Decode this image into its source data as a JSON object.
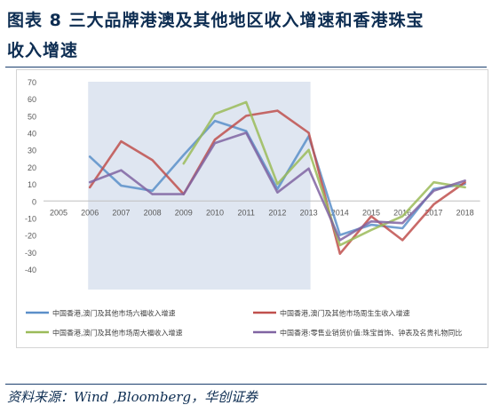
{
  "figure": {
    "title_line1": "图表 8   三大品牌港澳及其他地区收入增速和香港珠宝",
    "title_line2": "收入增速",
    "source": "资料来源：Wind ,Bloomberg，华创证券"
  },
  "chart_data": {
    "type": "line",
    "x": [
      "2005",
      "2006",
      "2007",
      "2008",
      "2009",
      "2010",
      "2011",
      "2012",
      "2013",
      "2014",
      "2015",
      "2016",
      "2017",
      "2018"
    ],
    "ylim": [
      -40,
      70
    ],
    "yticks": [
      70,
      60,
      50,
      40,
      30,
      20,
      10,
      0,
      -10,
      -20,
      -30,
      -40
    ],
    "grid": false,
    "legend_position": "bottom",
    "highlight_band": {
      "x_start": "2006",
      "x_end": "2013",
      "color": "#dfe6f1"
    },
    "series": [
      {
        "name": "中国香港,澳门及其他市场六福收入增速",
        "color": "#5b8fc9",
        "values": [
          null,
          26,
          9,
          6,
          27,
          47,
          41,
          7,
          38,
          -20,
          -14,
          -16,
          7,
          10
        ]
      },
      {
        "name": "中国香港,澳门及其他市场周生生收入增速",
        "color": "#c0504d",
        "values": [
          null,
          8,
          35,
          24,
          4,
          36,
          50,
          53,
          40,
          -31,
          -9,
          -23,
          -2,
          11
        ]
      },
      {
        "name": "中国香港,澳门及其他市场周大福收入增速",
        "color": "#9bbb59",
        "values": [
          null,
          null,
          null,
          null,
          22,
          51,
          58,
          10,
          30,
          -26,
          -17,
          -9,
          11,
          8
        ]
      },
      {
        "name": "中国香港:零售业销货价值:珠宝首饰、钟表及名贵礼物同比",
        "color": "#8064a2",
        "values": [
          null,
          11,
          18,
          4,
          4,
          34,
          40,
          5,
          19,
          -23,
          -12,
          -13,
          6,
          12
        ]
      }
    ]
  }
}
